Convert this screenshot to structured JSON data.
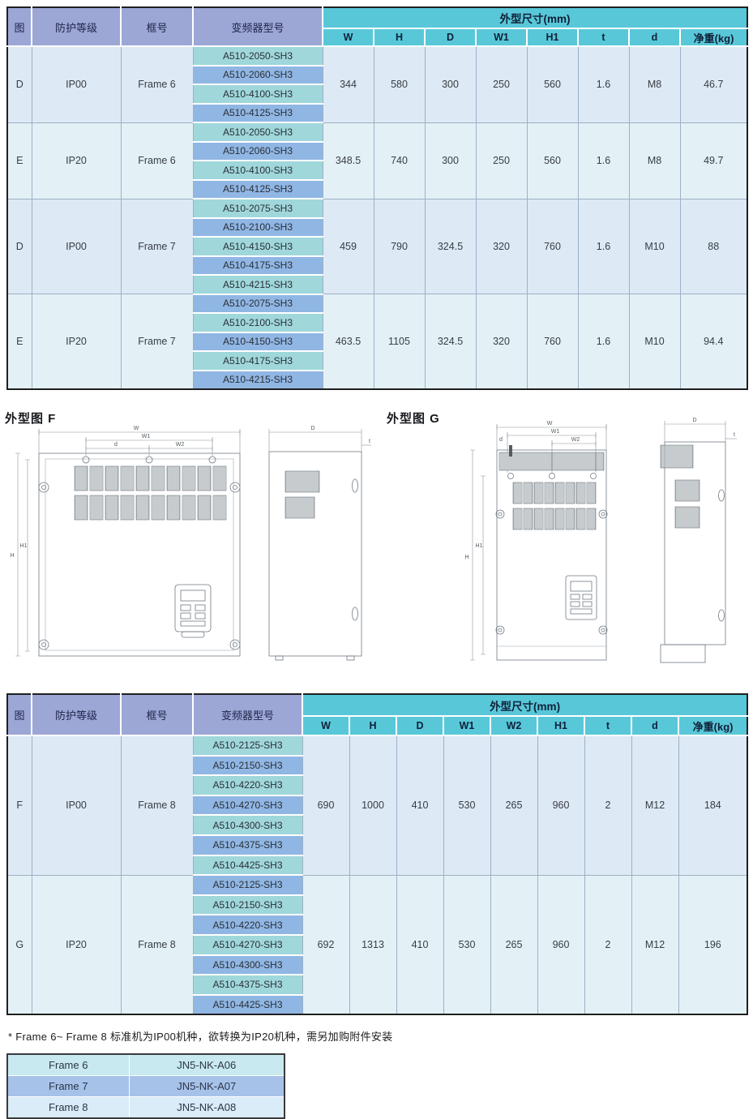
{
  "colors": {
    "header_purple": "#9ca7d6",
    "header_cyan": "#58c8d9",
    "model_teal": "#9fd7db",
    "model_blue": "#90b6e4",
    "row_blue": "#dde9f5",
    "row_cyan": "#e3f1f6",
    "accessory_row1": "#c8e9f0",
    "accessory_row2": "#a6c2e9",
    "accessory_row3": "#d9ecf7"
  },
  "table1": {
    "left_headers": [
      "图",
      "防护等级",
      "框号",
      "变频器型号"
    ],
    "dim_header": "外型尺寸(mm)",
    "dim_cols": [
      "W",
      "H",
      "D",
      "W1",
      "H1",
      "t",
      "d",
      "净重(kg)"
    ],
    "groups": [
      {
        "fig": "D",
        "protection": "IP00",
        "frame": "Frame 6",
        "models": [
          "A510-2050-SH3",
          "A510-2060-SH3",
          "A510-4100-SH3",
          "A510-4125-SH3"
        ],
        "dims": [
          "344",
          "580",
          "300",
          "250",
          "560",
          "1.6",
          "M8",
          "46.7"
        ]
      },
      {
        "fig": "E",
        "protection": "IP20",
        "frame": "Frame 6",
        "models": [
          "A510-2050-SH3",
          "A510-2060-SH3",
          "A510-4100-SH3",
          "A510-4125-SH3"
        ],
        "dims": [
          "348.5",
          "740",
          "300",
          "250",
          "560",
          "1.6",
          "M8",
          "49.7"
        ]
      },
      {
        "fig": "D",
        "protection": "IP00",
        "frame": "Frame 7",
        "models": [
          "A510-2075-SH3",
          "A510-2100-SH3",
          "A510-4150-SH3",
          "A510-4175-SH3",
          "A510-4215-SH3"
        ],
        "dims": [
          "459",
          "790",
          "324.5",
          "320",
          "760",
          "1.6",
          "M10",
          "88"
        ]
      },
      {
        "fig": "E",
        "protection": "IP20",
        "frame": "Frame 7",
        "models": [
          "A510-2075-SH3",
          "A510-2100-SH3",
          "A510-4150-SH3",
          "A510-4175-SH3",
          "A510-4215-SH3"
        ],
        "dims": [
          "463.5",
          "1105",
          "324.5",
          "320",
          "760",
          "1.6",
          "M10",
          "94.4"
        ]
      }
    ]
  },
  "drawings": {
    "f_caption": "外型图 F",
    "g_caption": "外型图 G",
    "labels": {
      "w": "W",
      "w1": "W1",
      "w2": "W2",
      "d": "d",
      "h": "H",
      "h1": "H1",
      "depth": "D",
      "t": "t"
    }
  },
  "table2": {
    "left_headers": [
      "图",
      "防护等级",
      "框号",
      "变频器型号"
    ],
    "dim_header": "外型尺寸(mm)",
    "dim_cols": [
      "W",
      "H",
      "D",
      "W1",
      "W2",
      "H1",
      "t",
      "d",
      "净重(kg)"
    ],
    "groups": [
      {
        "fig": "F",
        "protection": "IP00",
        "frame": "Frame 8",
        "models": [
          "A510-2125-SH3",
          "A510-2150-SH3",
          "A510-4220-SH3",
          "A510-4270-SH3",
          "A510-4300-SH3",
          "A510-4375-SH3",
          "A510-4425-SH3"
        ],
        "dims": [
          "690",
          "1000",
          "410",
          "530",
          "265",
          "960",
          "2",
          "M12",
          "184"
        ]
      },
      {
        "fig": "G",
        "protection": "IP20",
        "frame": "Frame 8",
        "models": [
          "A510-2125-SH3",
          "A510-2150-SH3",
          "A510-4220-SH3",
          "A510-4270-SH3",
          "A510-4300-SH3",
          "A510-4375-SH3",
          "A510-4425-SH3"
        ],
        "dims": [
          "692",
          "1313",
          "410",
          "530",
          "265",
          "960",
          "2",
          "M12",
          "196"
        ]
      }
    ]
  },
  "footnote": "* Frame 6~ Frame 8 标准机为IP00机种，欲转换为IP20机种，需另加购附件安装",
  "accessory_table": {
    "rows": [
      [
        "Frame 6",
        "JN5-NK-A06"
      ],
      [
        "Frame 7",
        "JN5-NK-A07"
      ],
      [
        "Frame 8",
        "JN5-NK-A08"
      ]
    ]
  }
}
